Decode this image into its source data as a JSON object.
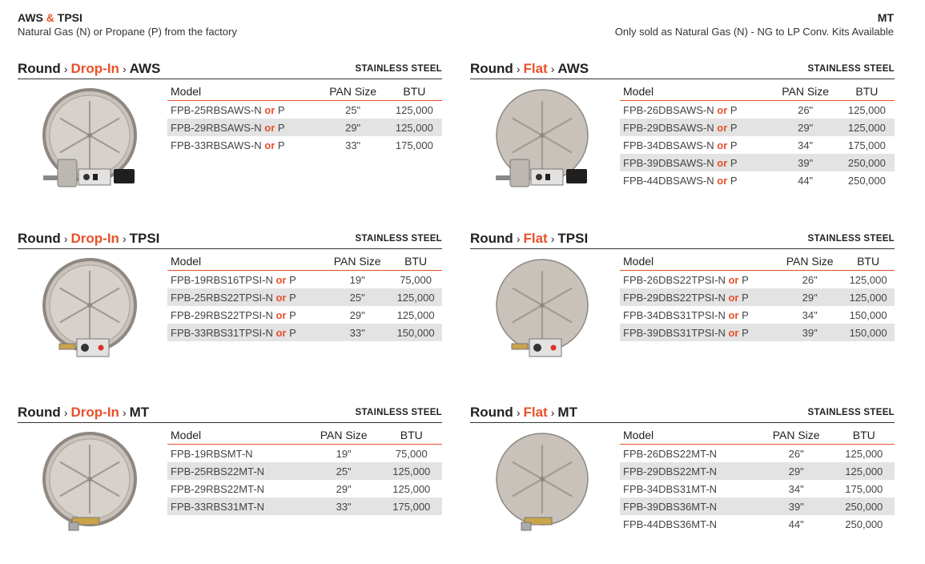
{
  "header_left": {
    "title_a": "AWS",
    "title_amp": "&",
    "title_b": "TPSI",
    "subtitle": "Natural Gas (N) or Propane (P) from the factory"
  },
  "header_right": {
    "title": "MT",
    "subtitle": "Only sold as Natural Gas (N) - NG to LP Conv. Kits Available"
  },
  "columns": {
    "model": "Model",
    "pan": "PAN Size",
    "btu": "BTU"
  },
  "or_word": "or",
  "sections": [
    {
      "id": "s1",
      "shape": "Round",
      "type": "Drop-In",
      "ignition": "AWS",
      "material": "STAINLESS STEEL",
      "rows": [
        {
          "model": "FPB-25RBSAWS-N",
          "suffix": "P",
          "pan": "25\"",
          "btu": "125,000"
        },
        {
          "model": "FPB-29RBSAWS-N",
          "suffix": "P",
          "pan": "29\"",
          "btu": "125,000"
        },
        {
          "model": "FPB-33RBSAWS-N",
          "suffix": "P",
          "pan": "33\"",
          "btu": "175,000"
        }
      ]
    },
    {
      "id": "s2",
      "shape": "Round",
      "type": "Flat",
      "ignition": "AWS",
      "material": "STAINLESS STEEL",
      "rows": [
        {
          "model": "FPB-26DBSAWS-N",
          "suffix": "P",
          "pan": "26\"",
          "btu": "125,000"
        },
        {
          "model": "FPB-29DBSAWS-N",
          "suffix": "P",
          "pan": "29\"",
          "btu": "125,000"
        },
        {
          "model": "FPB-34DBSAWS-N",
          "suffix": "P",
          "pan": "34\"",
          "btu": "175,000"
        },
        {
          "model": "FPB-39DBSAWS-N",
          "suffix": "P",
          "pan": "39\"",
          "btu": "250,000"
        },
        {
          "model": "FPB-44DBSAWS-N",
          "suffix": "P",
          "pan": "44\"",
          "btu": "250,000"
        }
      ]
    },
    {
      "id": "s3",
      "shape": "Round",
      "type": "Drop-In",
      "ignition": "TPSI",
      "material": "STAINLESS STEEL",
      "rows": [
        {
          "model": "FPB-19RBS16TPSI-N",
          "suffix": "P",
          "pan": "19\"",
          "btu": "75,000"
        },
        {
          "model": "FPB-25RBS22TPSI-N",
          "suffix": "P",
          "pan": "25\"",
          "btu": "125,000"
        },
        {
          "model": "FPB-29RBS22TPSI-N",
          "suffix": "P",
          "pan": "29\"",
          "btu": "125,000"
        },
        {
          "model": "FPB-33RBS31TPSI-N",
          "suffix": "P",
          "pan": "33\"",
          "btu": "150,000"
        }
      ]
    },
    {
      "id": "s4",
      "shape": "Round",
      "type": "Flat",
      "ignition": "TPSI",
      "material": "STAINLESS STEEL",
      "rows": [
        {
          "model": "FPB-26DBS22TPSI-N",
          "suffix": "P",
          "pan": "26\"",
          "btu": "125,000"
        },
        {
          "model": "FPB-29DBS22TPSI-N",
          "suffix": "P",
          "pan": "29\"",
          "btu": "125,000"
        },
        {
          "model": "FPB-34DBS31TPSI-N",
          "suffix": "P",
          "pan": "34\"",
          "btu": "150,000"
        },
        {
          "model": "FPB-39DBS31TPSI-N",
          "suffix": "P",
          "pan": "39\"",
          "btu": "150,000"
        }
      ]
    },
    {
      "id": "s5",
      "shape": "Round",
      "type": "Drop-In",
      "ignition": "MT",
      "material": "STAINLESS STEEL",
      "rows": [
        {
          "model": "FPB-19RBSMT-N",
          "suffix": "",
          "pan": "19\"",
          "btu": "75,000"
        },
        {
          "model": "FPB-25RBS22MT-N",
          "suffix": "",
          "pan": "25\"",
          "btu": "125,000"
        },
        {
          "model": "FPB-29RBS22MT-N",
          "suffix": "",
          "pan": "29\"",
          "btu": "125,000"
        },
        {
          "model": "FPB-33RBS31MT-N",
          "suffix": "",
          "pan": "33\"",
          "btu": "175,000"
        }
      ]
    },
    {
      "id": "s6",
      "shape": "Round",
      "type": "Flat",
      "ignition": "MT",
      "material": "STAINLESS STEEL",
      "rows": [
        {
          "model": "FPB-26DBS22MT-N",
          "suffix": "",
          "pan": "26\"",
          "btu": "125,000"
        },
        {
          "model": "FPB-29DBS22MT-N",
          "suffix": "",
          "pan": "29\"",
          "btu": "125,000"
        },
        {
          "model": "FPB-34DBS31MT-N",
          "suffix": "",
          "pan": "34\"",
          "btu": "175,000"
        },
        {
          "model": "FPB-39DBS36MT-N",
          "suffix": "",
          "pan": "39\"",
          "btu": "250,000"
        },
        {
          "model": "FPB-44DBS36MT-N",
          "suffix": "",
          "pan": "44\"",
          "btu": "250,000"
        }
      ]
    }
  ],
  "colors": {
    "accent": "#e8502a",
    "row_alt": "#e3e3e3",
    "pan_metal": "#c9c2bb"
  }
}
